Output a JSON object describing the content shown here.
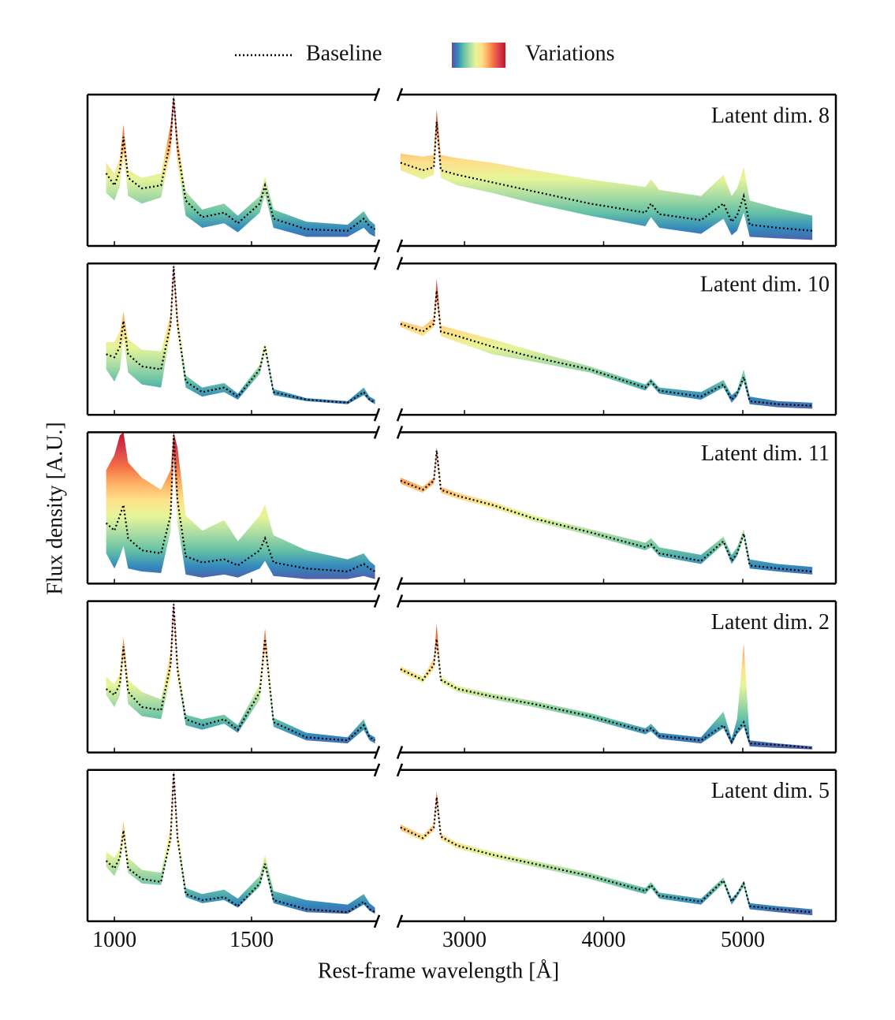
{
  "chart_data": {
    "type": "line",
    "xlabel": "Rest-frame wavelength [Å]",
    "ylabel": "Flux density [A.U.]",
    "series": [
      {
        "name": "Baseline",
        "color": "#000000",
        "style": "dotted"
      },
      {
        "name": "Variations",
        "colormap": [
          "#5e4fa2",
          "#3288bd",
          "#66c2a5",
          "#abdda4",
          "#e6f598",
          "#fee08b",
          "#fdae61",
          "#f46d43",
          "#d53e4f",
          "#c0161f"
        ]
      }
    ],
    "segments": [
      {
        "x": [
          970,
          1000,
          1020,
          1033,
          1050,
          1100,
          1170,
          1205,
          1216,
          1230,
          1260,
          1320,
          1400,
          1450,
          1530,
          1549,
          1580,
          1700,
          1850,
          1909,
          1930,
          1950
        ],
        "xlim": [
          902,
          1957
        ],
        "xticks": [
          1000,
          1500
        ]
      },
      {
        "x": [
          2540,
          2700,
          2780,
          2800,
          2830,
          2950,
          3200,
          3500,
          3900,
          4300,
          4340,
          4400,
          4700,
          4861,
          4920,
          4959,
          5007,
          5050,
          5250,
          5500
        ],
        "xlim": [
          2535,
          5669
        ],
        "xticks": [
          3000,
          4000,
          5000
        ]
      }
    ],
    "panels": [
      {
        "title": "Latent dim. 8",
        "ylim": [
          0,
          1
        ],
        "segments": [
          {
            "baseline": [
              0.48,
              0.4,
              0.5,
              0.72,
              0.45,
              0.38,
              0.4,
              0.7,
              0.98,
              0.65,
              0.3,
              0.19,
              0.22,
              0.15,
              0.28,
              0.4,
              0.18,
              0.11,
              0.1,
              0.18,
              0.13,
              0.11
            ],
            "lower": [
              0.35,
              0.3,
              0.4,
              0.62,
              0.33,
              0.28,
              0.32,
              0.62,
              0.95,
              0.55,
              0.2,
              0.12,
              0.15,
              0.09,
              0.22,
              0.34,
              0.12,
              0.06,
              0.06,
              0.12,
              0.08,
              0.06
            ],
            "upper": [
              0.55,
              0.48,
              0.58,
              0.8,
              0.5,
              0.45,
              0.48,
              0.8,
              1.0,
              0.72,
              0.36,
              0.24,
              0.28,
              0.2,
              0.33,
              0.46,
              0.24,
              0.16,
              0.14,
              0.23,
              0.17,
              0.14
            ]
          },
          {
            "baseline": [
              0.55,
              0.5,
              0.52,
              0.82,
              0.5,
              0.47,
              0.42,
              0.36,
              0.28,
              0.22,
              0.28,
              0.21,
              0.17,
              0.28,
              0.16,
              0.2,
              0.33,
              0.14,
              0.12,
              0.1
            ],
            "lower": [
              0.5,
              0.44,
              0.47,
              0.78,
              0.45,
              0.4,
              0.35,
              0.28,
              0.2,
              0.13,
              0.19,
              0.12,
              0.08,
              0.18,
              0.07,
              0.1,
              0.22,
              0.06,
              0.05,
              0.04
            ],
            "upper": [
              0.61,
              0.59,
              0.6,
              0.9,
              0.6,
              0.58,
              0.55,
              0.5,
              0.44,
              0.39,
              0.44,
              0.37,
              0.33,
              0.47,
              0.33,
              0.38,
              0.52,
              0.3,
              0.25,
              0.2
            ]
          }
        ]
      },
      {
        "title": "Latent dim. 10",
        "ylim": [
          0,
          1
        ],
        "segments": [
          {
            "baseline": [
              0.4,
              0.38,
              0.45,
              0.62,
              0.4,
              0.32,
              0.3,
              0.6,
              0.98,
              0.6,
              0.22,
              0.15,
              0.18,
              0.12,
              0.3,
              0.45,
              0.15,
              0.1,
              0.08,
              0.15,
              0.1,
              0.08
            ],
            "lower": [
              0.3,
              0.22,
              0.3,
              0.5,
              0.28,
              0.2,
              0.18,
              0.55,
              0.95,
              0.55,
              0.18,
              0.12,
              0.15,
              0.1,
              0.27,
              0.42,
              0.13,
              0.09,
              0.07,
              0.13,
              0.09,
              0.07
            ],
            "upper": [
              0.48,
              0.48,
              0.55,
              0.68,
              0.5,
              0.43,
              0.42,
              0.66,
              1.0,
              0.66,
              0.26,
              0.18,
              0.21,
              0.14,
              0.33,
              0.48,
              0.17,
              0.11,
              0.09,
              0.18,
              0.12,
              0.1
            ]
          },
          {
            "baseline": [
              0.6,
              0.55,
              0.6,
              0.82,
              0.55,
              0.52,
              0.45,
              0.38,
              0.3,
              0.18,
              0.22,
              0.16,
              0.12,
              0.2,
              0.1,
              0.14,
              0.25,
              0.09,
              0.07,
              0.06
            ],
            "lower": [
              0.58,
              0.52,
              0.58,
              0.78,
              0.52,
              0.48,
              0.4,
              0.35,
              0.28,
              0.16,
              0.2,
              0.14,
              0.1,
              0.18,
              0.08,
              0.12,
              0.22,
              0.07,
              0.05,
              0.04
            ],
            "upper": [
              0.62,
              0.58,
              0.64,
              0.9,
              0.59,
              0.56,
              0.5,
              0.42,
              0.32,
              0.2,
              0.24,
              0.18,
              0.15,
              0.23,
              0.13,
              0.16,
              0.3,
              0.12,
              0.09,
              0.08
            ]
          }
        ]
      },
      {
        "title": "Latent dim. 11",
        "ylim": [
          0,
          1
        ],
        "segments": [
          {
            "baseline": [
              0.4,
              0.35,
              0.45,
              0.52,
              0.3,
              0.22,
              0.2,
              0.45,
              0.98,
              0.55,
              0.18,
              0.14,
              0.16,
              0.12,
              0.22,
              0.3,
              0.14,
              0.1,
              0.08,
              0.13,
              0.1,
              0.08
            ],
            "lower": [
              0.2,
              0.1,
              0.18,
              0.25,
              0.1,
              0.08,
              0.07,
              0.35,
              0.85,
              0.4,
              0.06,
              0.04,
              0.06,
              0.04,
              0.1,
              0.15,
              0.05,
              0.03,
              0.03,
              0.05,
              0.04,
              0.03
            ],
            "upper": [
              0.75,
              0.85,
              0.98,
              1.0,
              0.8,
              0.7,
              0.62,
              0.75,
              1.0,
              0.9,
              0.45,
              0.35,
              0.42,
              0.28,
              0.45,
              0.52,
              0.32,
              0.22,
              0.16,
              0.2,
              0.15,
              0.12
            ]
          },
          {
            "baseline": [
              0.68,
              0.62,
              0.68,
              0.88,
              0.62,
              0.58,
              0.52,
              0.43,
              0.34,
              0.24,
              0.26,
              0.2,
              0.15,
              0.28,
              0.15,
              0.2,
              0.33,
              0.12,
              0.1,
              0.08
            ],
            "lower": [
              0.66,
              0.6,
              0.66,
              0.86,
              0.6,
              0.56,
              0.5,
              0.41,
              0.32,
              0.22,
              0.24,
              0.18,
              0.13,
              0.26,
              0.13,
              0.18,
              0.31,
              0.1,
              0.08,
              0.06
            ],
            "upper": [
              0.7,
              0.64,
              0.7,
              0.9,
              0.64,
              0.6,
              0.54,
              0.45,
              0.36,
              0.27,
              0.3,
              0.24,
              0.19,
              0.31,
              0.19,
              0.24,
              0.36,
              0.16,
              0.13,
              0.11
            ]
          }
        ]
      },
      {
        "title": "Latent dim. 2",
        "ylim": [
          0,
          1
        ],
        "segments": [
          {
            "baseline": [
              0.42,
              0.38,
              0.45,
              0.7,
              0.4,
              0.3,
              0.28,
              0.58,
              0.98,
              0.55,
              0.22,
              0.18,
              0.22,
              0.15,
              0.4,
              0.75,
              0.2,
              0.1,
              0.08,
              0.18,
              0.1,
              0.08
            ],
            "lower": [
              0.38,
              0.3,
              0.38,
              0.65,
              0.32,
              0.24,
              0.22,
              0.5,
              0.95,
              0.5,
              0.18,
              0.15,
              0.19,
              0.13,
              0.35,
              0.7,
              0.17,
              0.08,
              0.06,
              0.15,
              0.08,
              0.06
            ],
            "upper": [
              0.5,
              0.45,
              0.52,
              0.76,
              0.48,
              0.4,
              0.35,
              0.66,
              1.0,
              0.6,
              0.25,
              0.22,
              0.25,
              0.18,
              0.45,
              0.82,
              0.23,
              0.13,
              0.1,
              0.22,
              0.12,
              0.1
            ]
          },
          {
            "baseline": [
              0.55,
              0.48,
              0.58,
              0.75,
              0.48,
              0.42,
              0.37,
              0.32,
              0.24,
              0.14,
              0.16,
              0.11,
              0.08,
              0.18,
              0.07,
              0.14,
              0.2,
              0.06,
              0.05,
              0.03
            ],
            "lower": [
              0.53,
              0.46,
              0.55,
              0.72,
              0.46,
              0.4,
              0.35,
              0.3,
              0.22,
              0.12,
              0.14,
              0.09,
              0.06,
              0.16,
              0.05,
              0.12,
              0.17,
              0.04,
              0.03,
              0.02
            ],
            "upper": [
              0.57,
              0.5,
              0.62,
              0.85,
              0.5,
              0.44,
              0.39,
              0.34,
              0.26,
              0.16,
              0.19,
              0.13,
              0.1,
              0.27,
              0.09,
              0.22,
              0.72,
              0.08,
              0.06,
              0.04
            ]
          }
        ]
      },
      {
        "title": "Latent dim. 5",
        "ylim": [
          0,
          1
        ],
        "segments": [
          {
            "baseline": [
              0.4,
              0.35,
              0.42,
              0.6,
              0.35,
              0.28,
              0.26,
              0.55,
              0.98,
              0.55,
              0.18,
              0.14,
              0.16,
              0.1,
              0.25,
              0.38,
              0.14,
              0.08,
              0.06,
              0.13,
              0.08,
              0.06
            ],
            "lower": [
              0.36,
              0.3,
              0.38,
              0.56,
              0.32,
              0.25,
              0.24,
              0.52,
              0.96,
              0.52,
              0.16,
              0.12,
              0.14,
              0.09,
              0.23,
              0.35,
              0.12,
              0.06,
              0.05,
              0.11,
              0.07,
              0.05
            ],
            "upper": [
              0.46,
              0.42,
              0.48,
              0.66,
              0.42,
              0.34,
              0.32,
              0.62,
              1.0,
              0.6,
              0.22,
              0.18,
              0.21,
              0.15,
              0.3,
              0.44,
              0.2,
              0.14,
              0.11,
              0.18,
              0.12,
              0.09
            ]
          },
          {
            "baseline": [
              0.62,
              0.55,
              0.62,
              0.82,
              0.56,
              0.5,
              0.44,
              0.38,
              0.3,
              0.2,
              0.24,
              0.17,
              0.13,
              0.27,
              0.13,
              0.18,
              0.25,
              0.1,
              0.08,
              0.06
            ],
            "lower": [
              0.6,
              0.53,
              0.6,
              0.8,
              0.54,
              0.48,
              0.42,
              0.36,
              0.28,
              0.18,
              0.22,
              0.15,
              0.11,
              0.25,
              0.11,
              0.16,
              0.23,
              0.08,
              0.06,
              0.04
            ],
            "upper": [
              0.64,
              0.57,
              0.64,
              0.86,
              0.58,
              0.52,
              0.46,
              0.4,
              0.32,
              0.22,
              0.26,
              0.19,
              0.15,
              0.29,
              0.15,
              0.19,
              0.27,
              0.12,
              0.1,
              0.08
            ]
          }
        ]
      }
    ]
  }
}
